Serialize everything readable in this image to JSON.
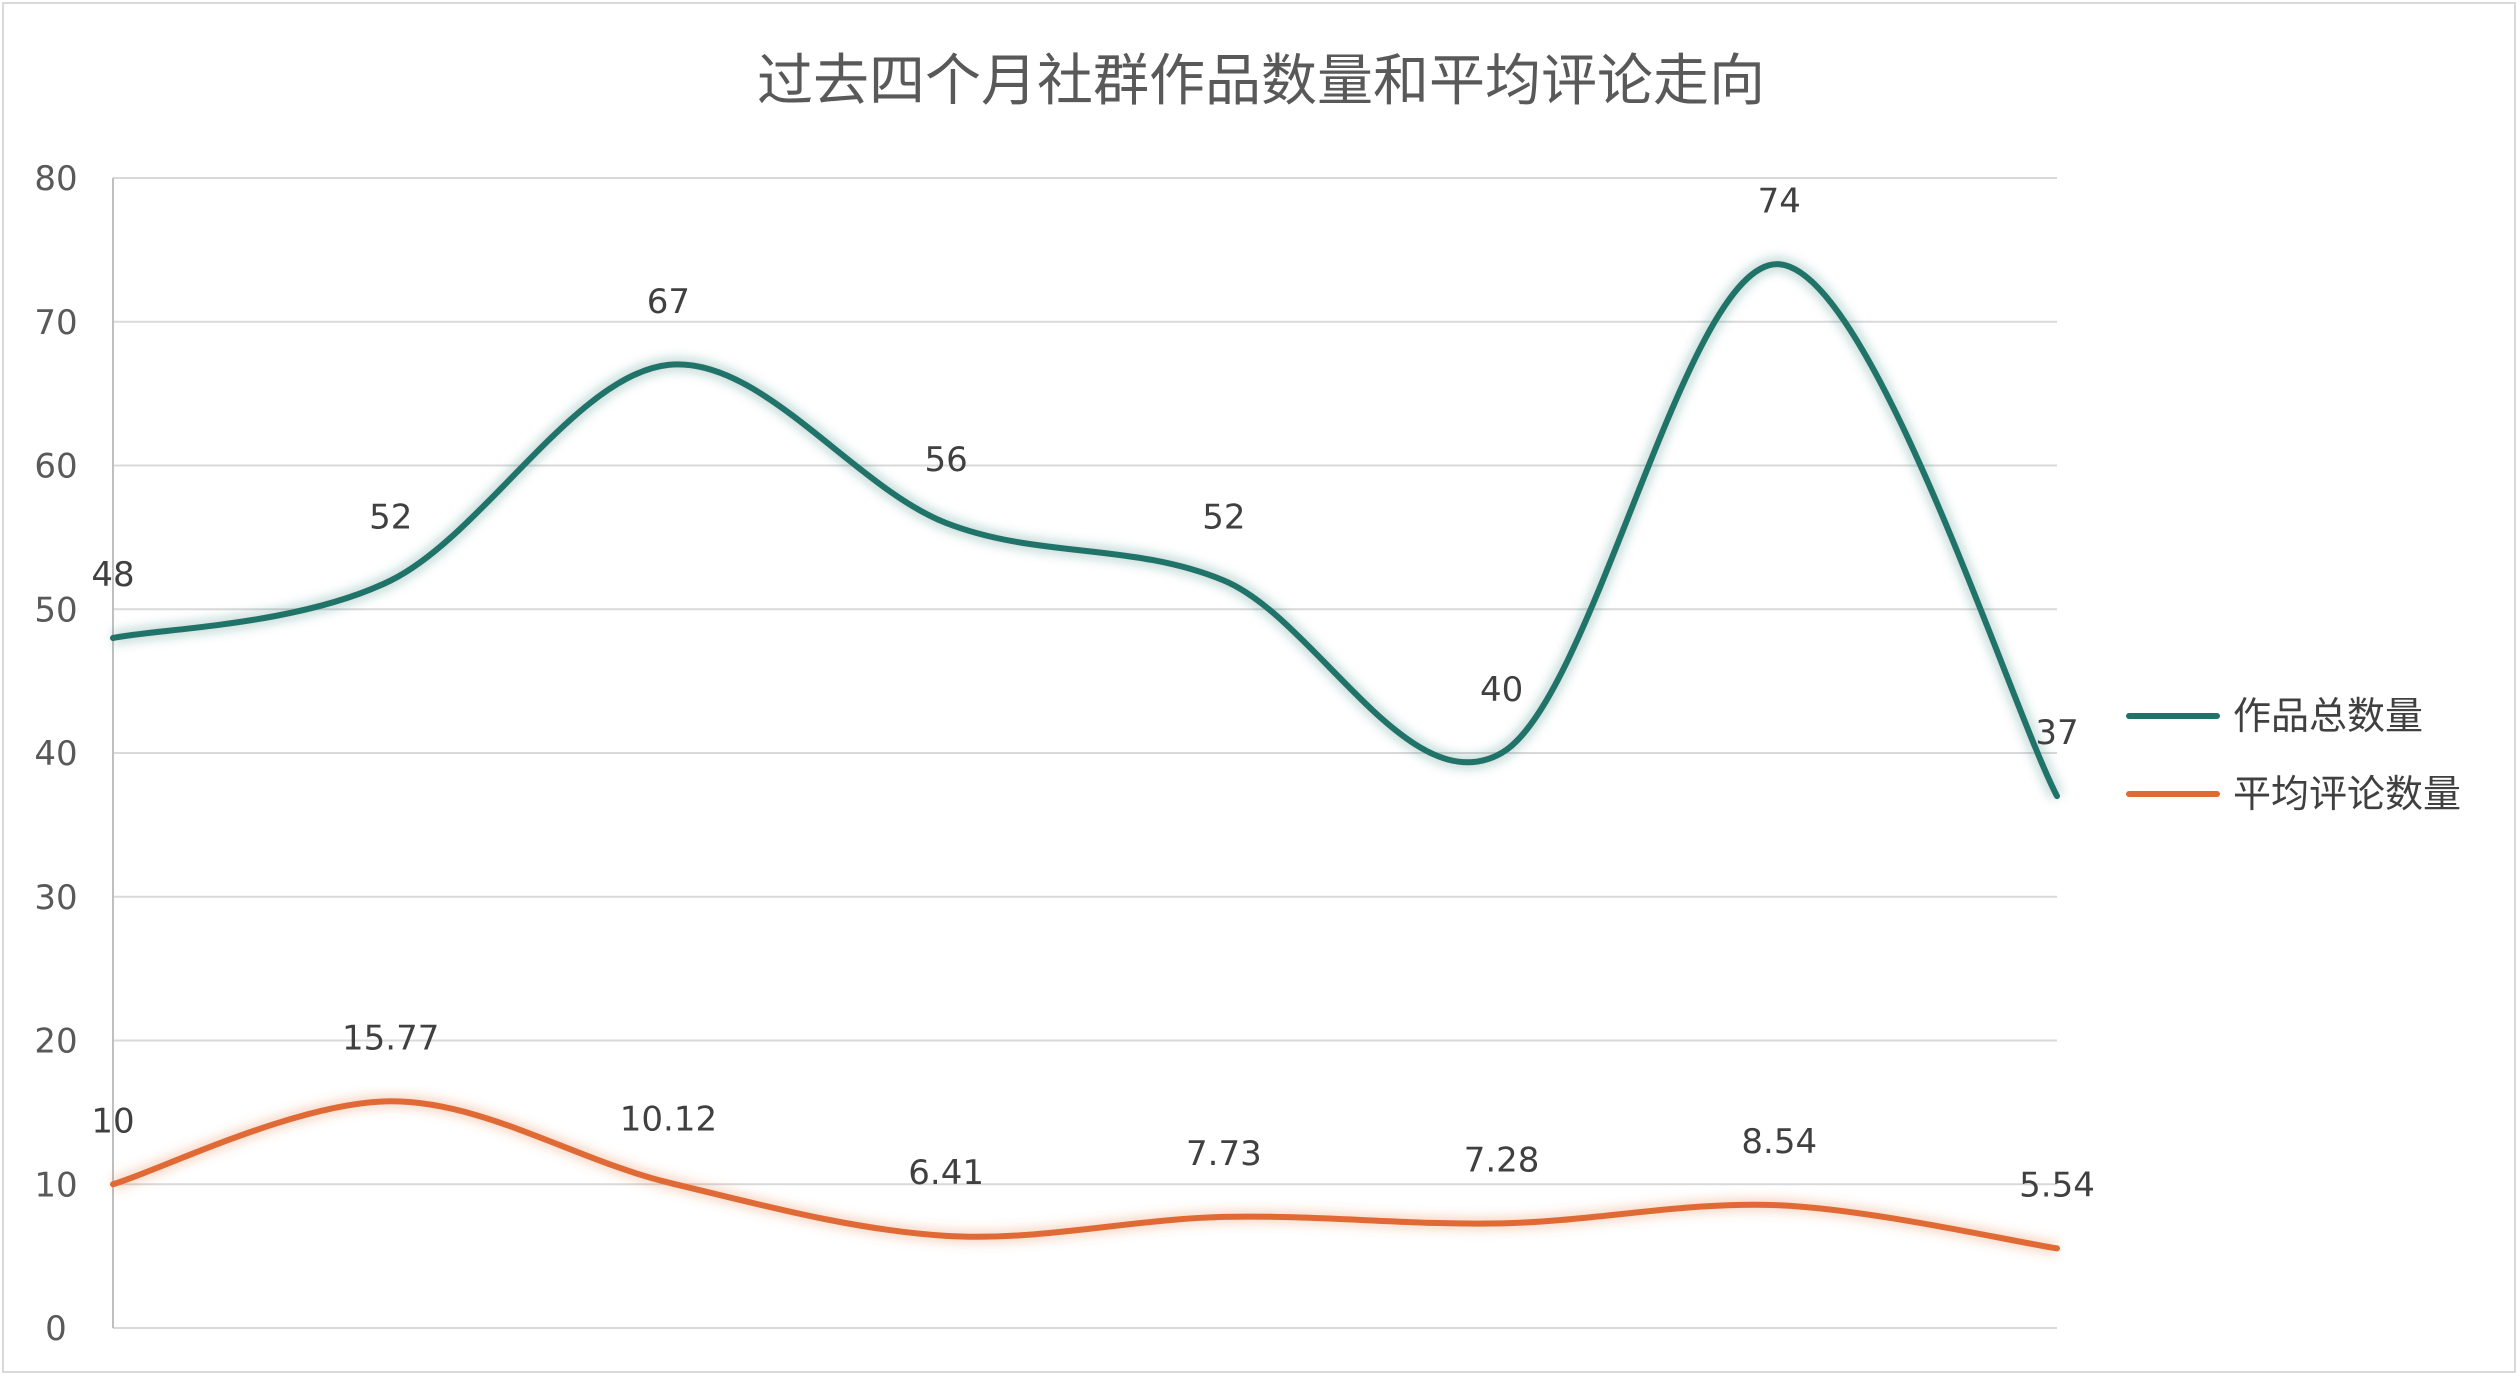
{
  "chart_data": {
    "type": "line",
    "title": "过去四个月社群作品数量和平均评论走向",
    "xlabel": "",
    "ylabel": "",
    "ylim": [
      0,
      80
    ],
    "yticks": [
      0,
      10,
      20,
      30,
      40,
      50,
      60,
      70,
      80
    ],
    "grid": true,
    "smooth": true,
    "legend_position": "right",
    "x": [
      1,
      2,
      3,
      4,
      5,
      6,
      7,
      8
    ],
    "series": [
      {
        "name": "作品总数量",
        "color": "#1f7369",
        "values": [
          48,
          52,
          67,
          56,
          52,
          40,
          74,
          37
        ],
        "labels": [
          "48",
          "52",
          "67",
          "56",
          "52",
          "40",
          "74",
          "37"
        ]
      },
      {
        "name": "平均评论数量",
        "color": "#e06a35",
        "values": [
          10,
          15.77,
          10.12,
          6.41,
          7.73,
          7.28,
          8.54,
          5.54
        ],
        "labels": [
          "10",
          "15.77",
          "10.12",
          "6.41",
          "7.73",
          "7.28",
          "8.54",
          "5.54"
        ]
      }
    ]
  }
}
